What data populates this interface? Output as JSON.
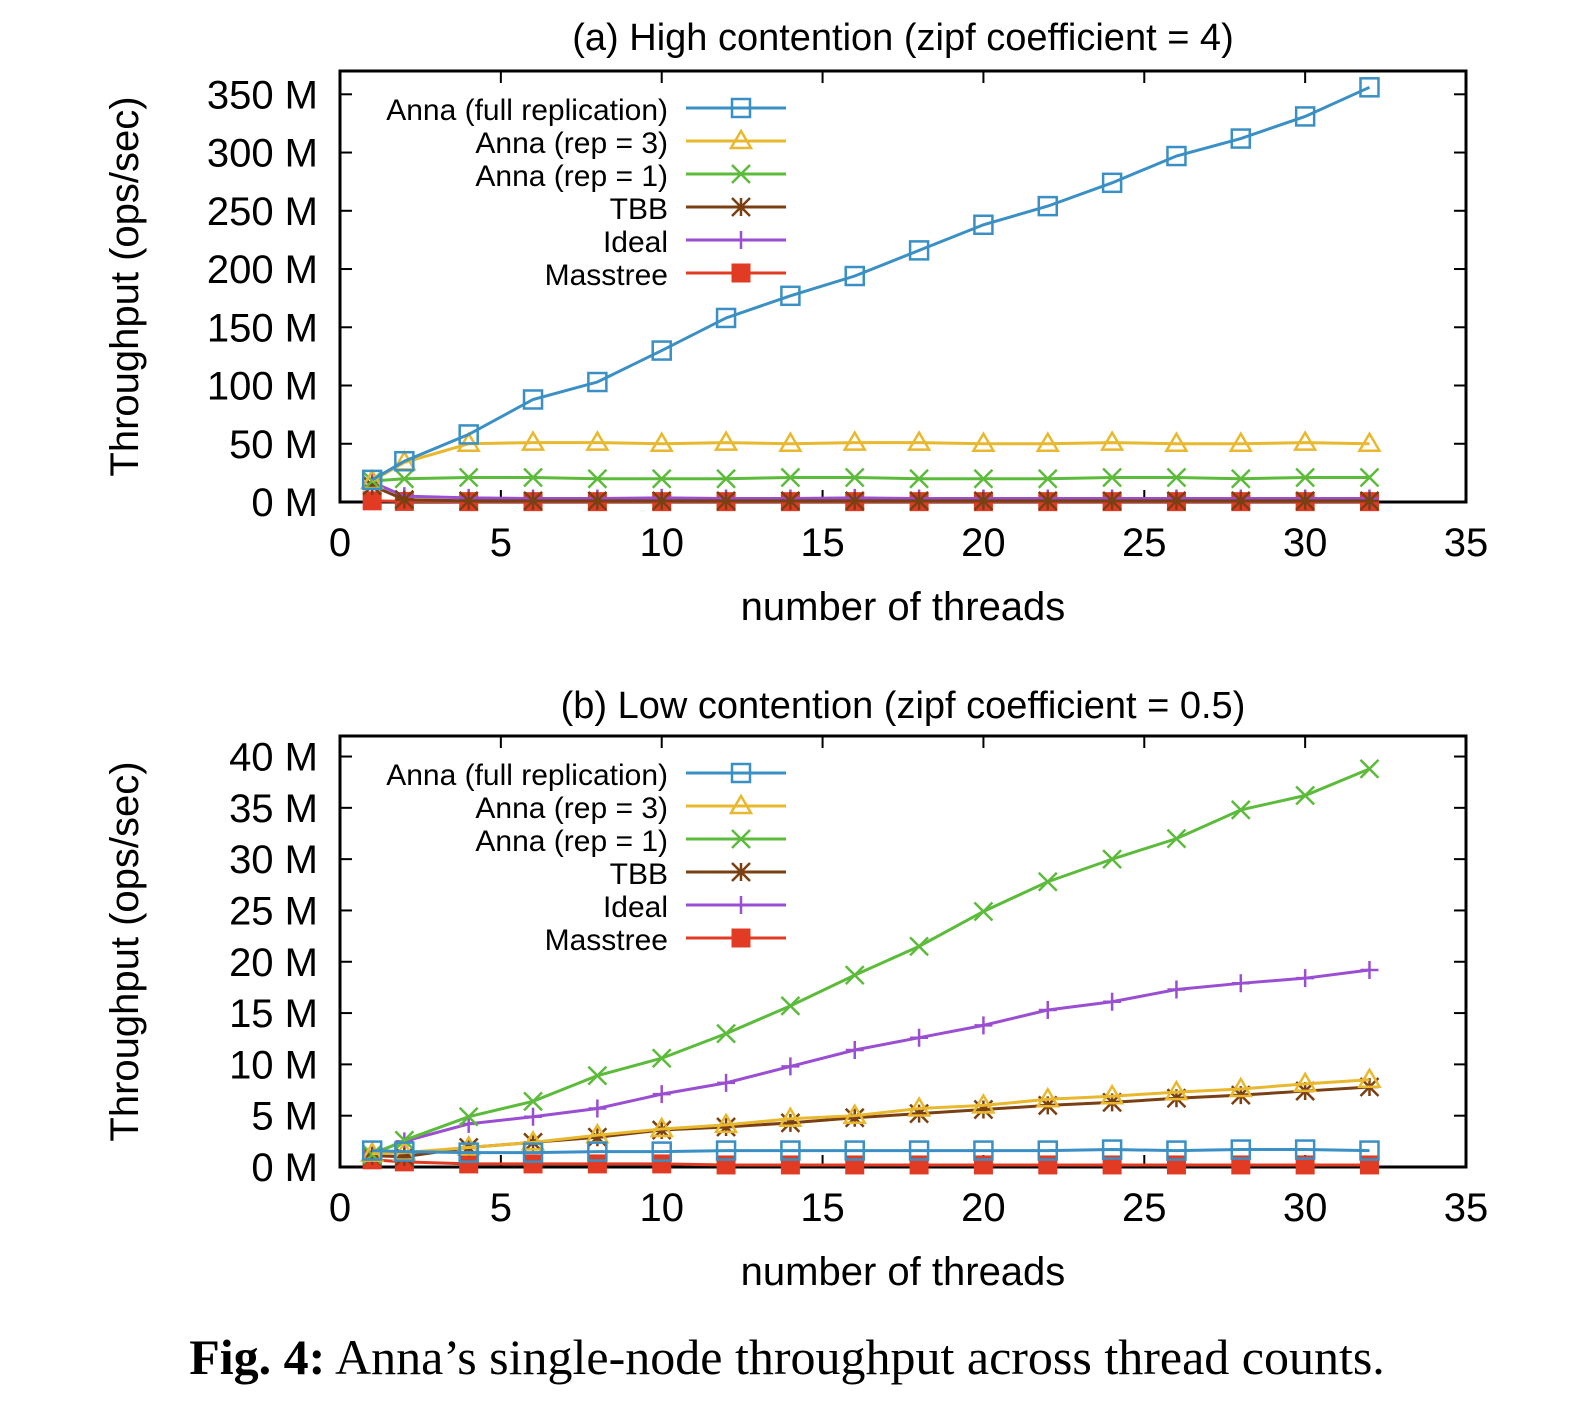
{
  "caption": {
    "label": "Fig. 4:",
    "text": "Anna’s single-node throughput across thread counts."
  },
  "chart_data": [
    {
      "type": "line",
      "title": "(a) High contention (zipf coefficient = 4)",
      "xlabel": "number of threads",
      "ylabel": "Throughput (ops/sec)",
      "xlim": [
        0,
        35
      ],
      "ylim": [
        0,
        370
      ],
      "xticks": [
        0,
        5,
        10,
        15,
        20,
        25,
        30,
        35
      ],
      "yticks": [
        0,
        50,
        100,
        150,
        200,
        250,
        300,
        350
      ],
      "ytick_suffix": " M",
      "legend_position": "top-left",
      "grid": false,
      "x": [
        1,
        2,
        4,
        6,
        8,
        10,
        12,
        14,
        16,
        18,
        20,
        22,
        24,
        26,
        28,
        30,
        32
      ],
      "series": [
        {
          "name": "Anna (full replication)",
          "color": "#3a8fc4",
          "marker": "open-square",
          "values": [
            19,
            35,
            58,
            88,
            103,
            130,
            158,
            177,
            194,
            216,
            238,
            254,
            274,
            297,
            312,
            331,
            356
          ]
        },
        {
          "name": "Anna (rep = 3)",
          "color": "#e8b82e",
          "marker": "open-triangle",
          "values": [
            18,
            34,
            50,
            51,
            51,
            50,
            51,
            50,
            51,
            51,
            50,
            50,
            51,
            50,
            50,
            51,
            50
          ]
        },
        {
          "name": "Anna (rep = 1)",
          "color": "#5dbb3c",
          "marker": "x",
          "values": [
            18,
            20,
            21,
            21,
            20,
            20,
            20,
            21,
            21,
            20,
            20,
            20,
            21,
            21,
            20,
            21,
            21
          ]
        },
        {
          "name": "TBB",
          "color": "#7a4013",
          "marker": "asterisk",
          "values": [
            14,
            2,
            1,
            1,
            1,
            1,
            1,
            1,
            1,
            1,
            1,
            1,
            1,
            1,
            1,
            1,
            1
          ]
        },
        {
          "name": "Ideal",
          "color": "#9a4fd2",
          "marker": "plus",
          "values": [
            17,
            5,
            3.5,
            3,
            3,
            3.5,
            3,
            3,
            3.5,
            3,
            3,
            3,
            3,
            3,
            3,
            3,
            3
          ]
        },
        {
          "name": "Masstree",
          "color": "#e23b24",
          "marker": "filled-square",
          "values": [
            1,
            0.5,
            0.3,
            0.3,
            0.3,
            0.3,
            0.3,
            0.3,
            0.3,
            0.3,
            0.3,
            0.3,
            0.3,
            0.3,
            0.3,
            0.3,
            0.3
          ]
        }
      ]
    },
    {
      "type": "line",
      "title": "(b) Low contention (zipf coefficient = 0.5)",
      "xlabel": "number of threads",
      "ylabel": "Throughput (ops/sec)",
      "xlim": [
        0,
        35
      ],
      "ylim": [
        0,
        42
      ],
      "xticks": [
        0,
        5,
        10,
        15,
        20,
        25,
        30,
        35
      ],
      "yticks": [
        0,
        5,
        10,
        15,
        20,
        25,
        30,
        35,
        40
      ],
      "ytick_suffix": " M",
      "legend_position": "top-left",
      "grid": false,
      "x": [
        1,
        2,
        4,
        6,
        8,
        10,
        12,
        14,
        16,
        18,
        20,
        22,
        24,
        26,
        28,
        30,
        32
      ],
      "series": [
        {
          "name": "Anna (full replication)",
          "color": "#3a8fc4",
          "marker": "open-square",
          "values": [
            1.6,
            1.5,
            1.4,
            1.4,
            1.5,
            1.5,
            1.6,
            1.6,
            1.6,
            1.6,
            1.6,
            1.6,
            1.7,
            1.6,
            1.7,
            1.7,
            1.6
          ]
        },
        {
          "name": "Anna (rep = 3)",
          "color": "#e8b82e",
          "marker": "open-triangle",
          "values": [
            1.3,
            1.4,
            1.9,
            2.4,
            3.1,
            3.7,
            4.1,
            4.7,
            5.0,
            5.7,
            6.0,
            6.6,
            6.9,
            7.3,
            7.6,
            8.1,
            8.5
          ]
        },
        {
          "name": "Anna (rep = 1)",
          "color": "#5dbb3c",
          "marker": "x",
          "values": [
            1.2,
            2.6,
            4.9,
            6.4,
            8.9,
            10.6,
            13.0,
            15.7,
            18.7,
            21.5,
            24.9,
            27.8,
            30.0,
            32.0,
            34.8,
            36.2,
            38.8
          ]
        },
        {
          "name": "TBB",
          "color": "#7a4013",
          "marker": "asterisk",
          "values": [
            1.1,
            1.0,
            1.9,
            2.4,
            2.9,
            3.6,
            3.9,
            4.3,
            4.8,
            5.2,
            5.6,
            6.0,
            6.3,
            6.7,
            7.0,
            7.4,
            7.8
          ]
        },
        {
          "name": "Ideal",
          "color": "#9a4fd2",
          "marker": "plus",
          "values": [
            1.3,
            2.5,
            4.2,
            4.9,
            5.7,
            7.1,
            8.2,
            9.8,
            11.4,
            12.6,
            13.8,
            15.3,
            16.1,
            17.3,
            17.9,
            18.4,
            19.2
          ]
        },
        {
          "name": "Masstree",
          "color": "#e23b24",
          "marker": "filled-square",
          "values": [
            0.7,
            0.5,
            0.3,
            0.3,
            0.3,
            0.3,
            0.2,
            0.2,
            0.2,
            0.2,
            0.2,
            0.2,
            0.2,
            0.2,
            0.2,
            0.2,
            0.2
          ]
        }
      ]
    }
  ]
}
